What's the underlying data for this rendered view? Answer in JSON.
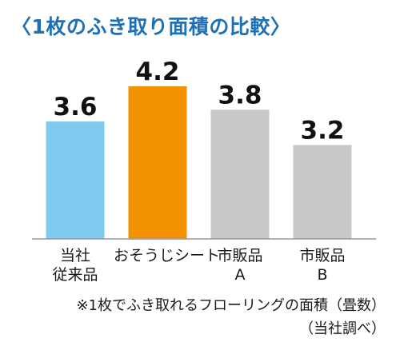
{
  "chart_data": {
    "type": "bar",
    "title": "〈1枚のふき取り面積の比較〉",
    "categories": [
      {
        "line1": "当社",
        "line2": "従来品"
      },
      {
        "line1": "おそうじシート",
        "line2": ""
      },
      {
        "line1": "市販品",
        "line2": "A"
      },
      {
        "line1": "市販品",
        "line2": "B"
      }
    ],
    "values": [
      3.6,
      4.2,
      3.8,
      3.2
    ],
    "value_labels": [
      "3.6",
      "4.2",
      "3.8",
      "3.2"
    ],
    "colors": [
      "#7fcbf0",
      "#f39200",
      "#c8c8c8",
      "#c8c8c8"
    ],
    "ylim": [
      1.6,
      4.2
    ],
    "grid": false,
    "legend": "none",
    "xlabel": "",
    "ylabel": ""
  },
  "footnote": {
    "line1": "※1枚でふき取れるフローリングの面積（畳数）",
    "line2": "（当社調べ）"
  }
}
